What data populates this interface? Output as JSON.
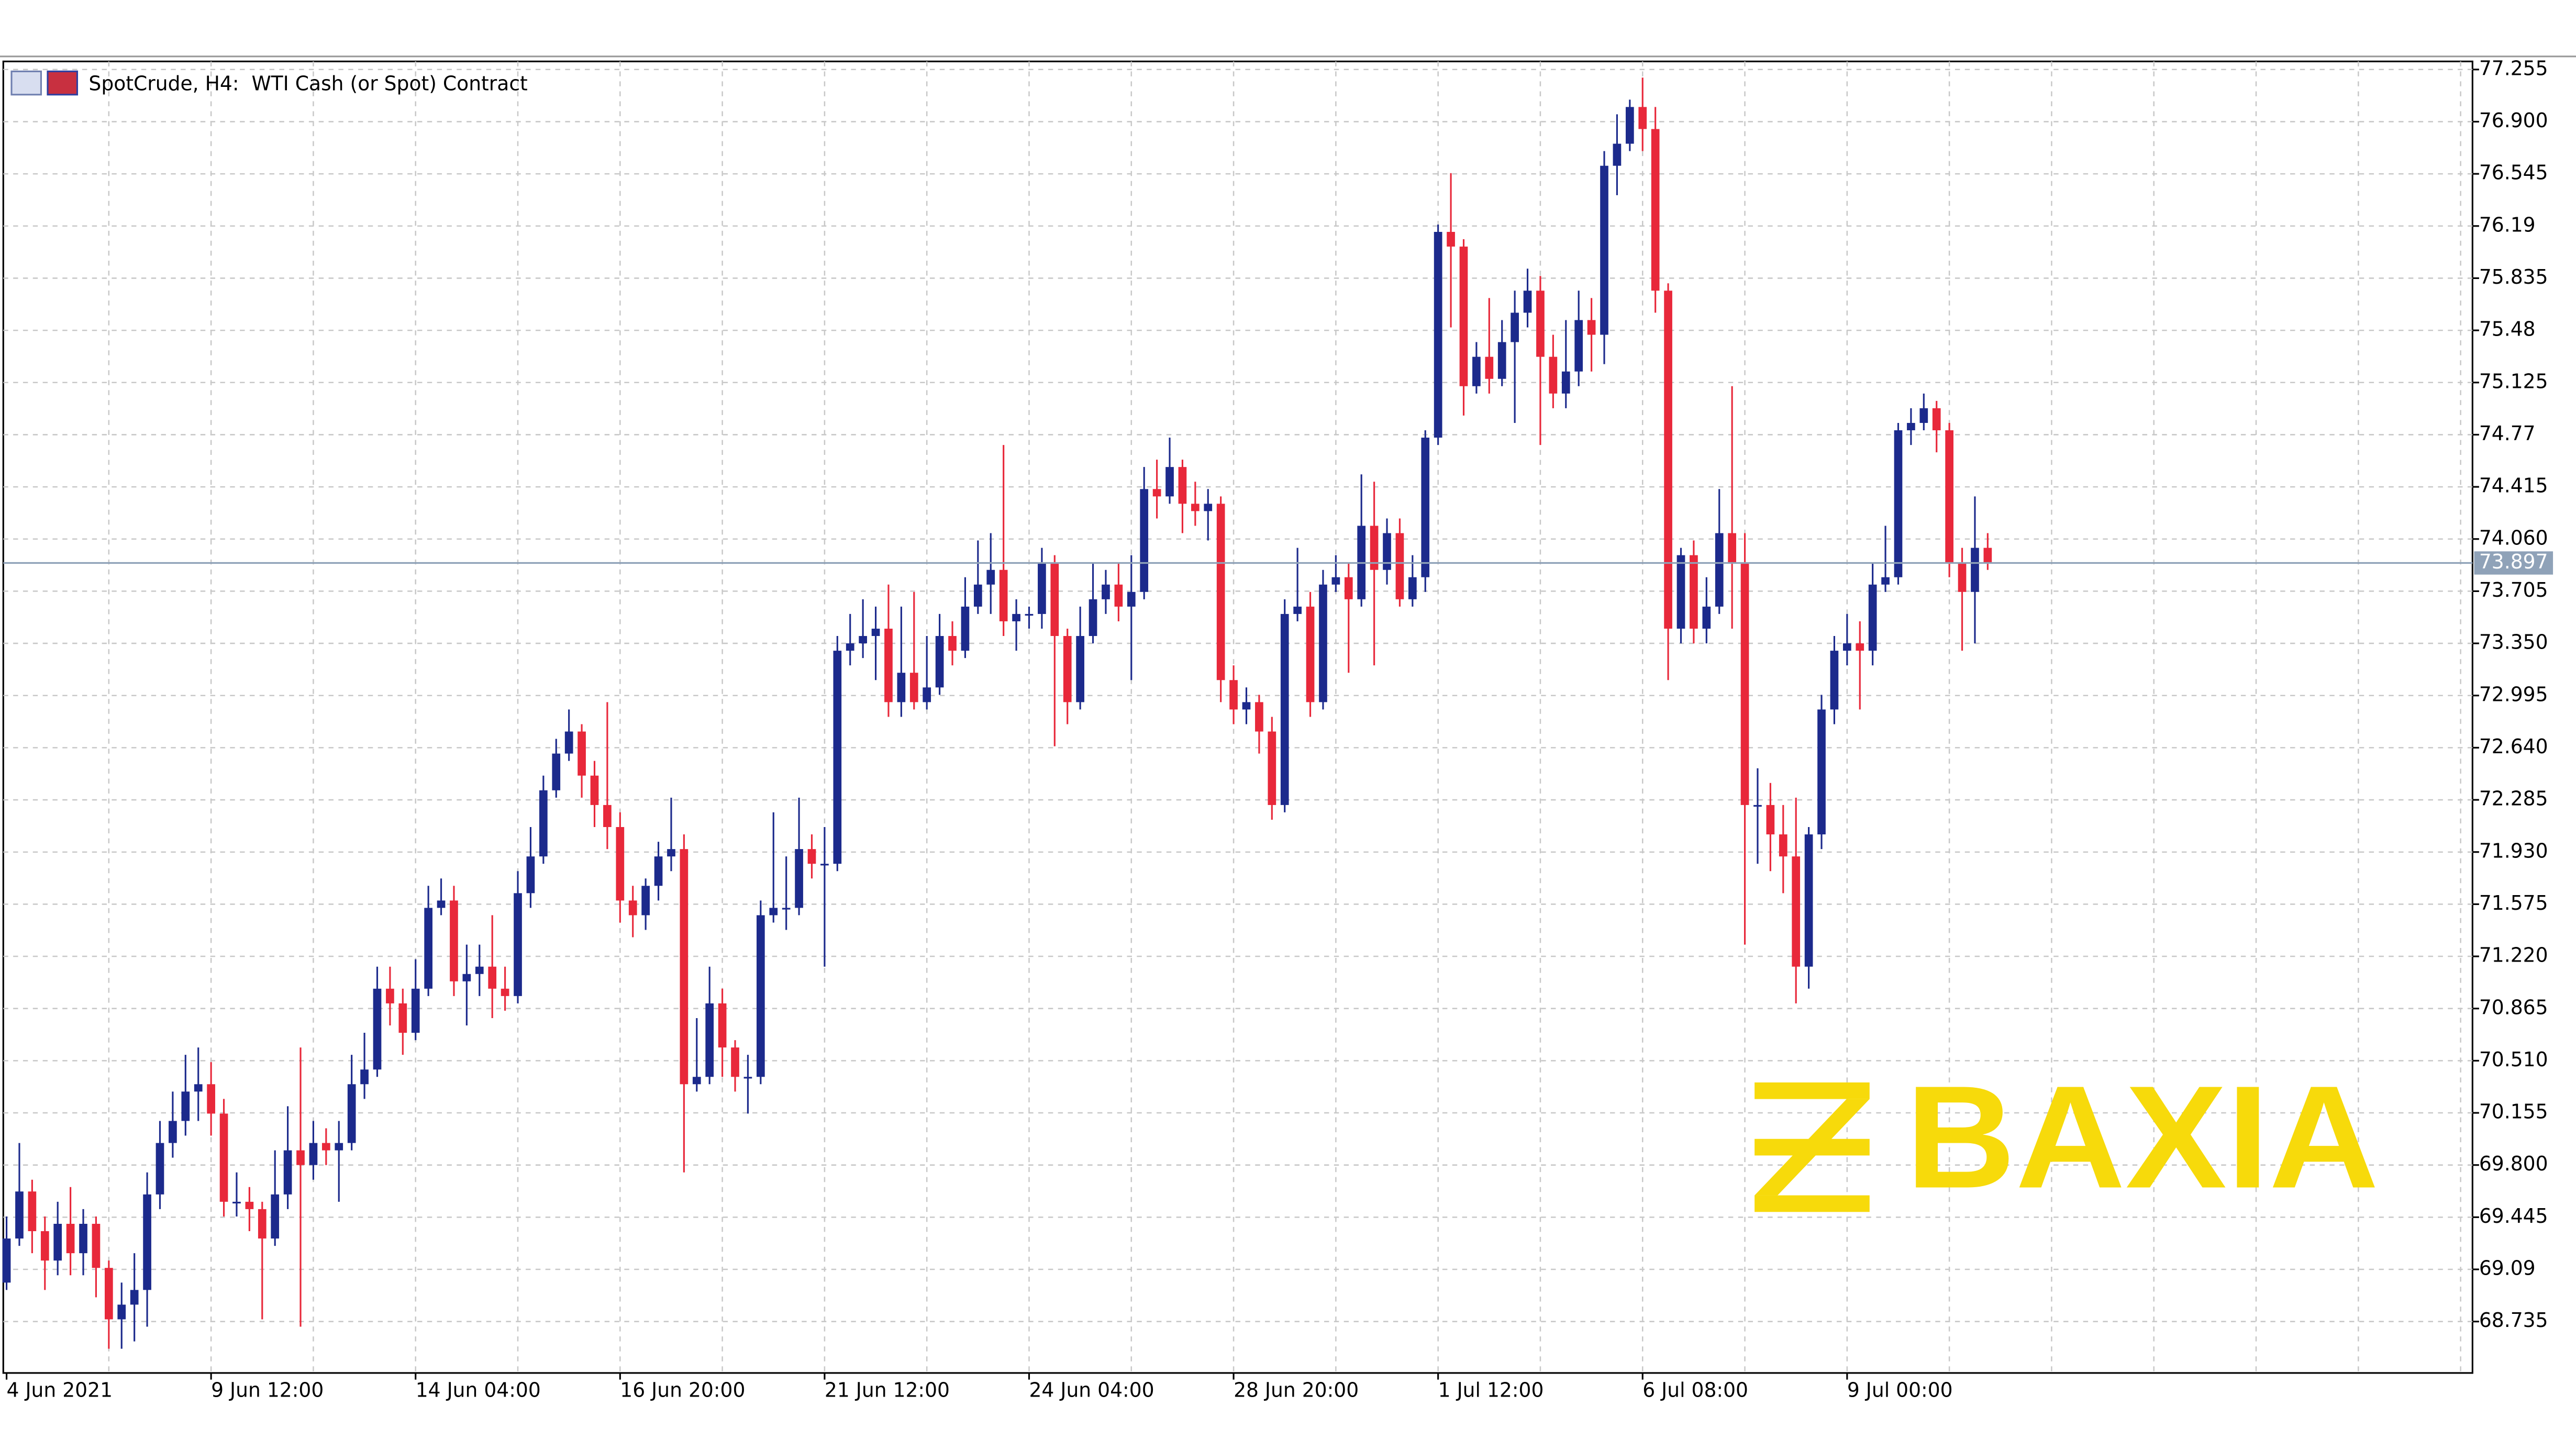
{
  "chart_data": {
    "type": "candlestick",
    "title": "SpotCrude, H4:  WTI Cash (or Spot) Contract",
    "categories": [
      "4 Jun 2021",
      null,
      null,
      null,
      null,
      null,
      null,
      null,
      null,
      null,
      null,
      null,
      null,
      null,
      null,
      null,
      "9 Jun 12:00",
      null,
      null,
      null,
      null,
      null,
      null,
      null,
      null,
      null,
      null,
      null,
      null,
      null,
      null,
      null,
      "14 Jun 04:00",
      null,
      null,
      null,
      null,
      null,
      null,
      null,
      null,
      null,
      null,
      null,
      null,
      null,
      null,
      null,
      "16 Jun 20:00",
      null,
      null,
      null,
      null,
      null,
      null,
      null,
      null,
      null,
      null,
      null,
      null,
      null,
      null,
      null,
      "21 Jun 12:00",
      null,
      null,
      null,
      null,
      null,
      null,
      null,
      null,
      null,
      null,
      null,
      null,
      null,
      null,
      null,
      "24 Jun 04:00",
      null,
      null,
      null,
      null,
      null,
      null,
      null,
      null,
      null,
      null,
      null,
      null,
      null,
      null,
      null,
      "28 Jun 20:00",
      null,
      null,
      null,
      null,
      null,
      null,
      null,
      null,
      null,
      null,
      null,
      null,
      null,
      null,
      null,
      "1 Jul 12:00",
      null,
      null,
      null,
      null,
      null,
      null,
      null,
      null,
      null,
      null,
      null,
      null,
      null,
      null,
      null,
      "6 Jul 08:00",
      null,
      null,
      null,
      null,
      null,
      null,
      null,
      null,
      null,
      null,
      null,
      null,
      null,
      null,
      null,
      "9 Jul 00:00",
      null,
      null,
      null,
      null,
      null,
      null,
      null,
      null,
      null,
      null,
      null
    ],
    "open": [
      69.0,
      69.3,
      69.62,
      69.35,
      69.15,
      69.4,
      69.2,
      69.4,
      69.1,
      68.75,
      68.85,
      68.95,
      69.6,
      69.95,
      70.1,
      70.3,
      70.35,
      70.15,
      69.55,
      69.55,
      69.5,
      69.3,
      69.6,
      69.9,
      69.8,
      69.95,
      69.9,
      69.95,
      70.35,
      70.45,
      71.0,
      70.9,
      70.7,
      71.0,
      71.55,
      71.6,
      71.05,
      71.1,
      71.15,
      71.0,
      70.95,
      71.65,
      71.9,
      72.35,
      72.6,
      72.75,
      72.45,
      72.25,
      72.1,
      71.6,
      71.5,
      71.7,
      71.9,
      71.95,
      70.35,
      70.4,
      70.9,
      70.6,
      70.4,
      70.4,
      71.5,
      71.55,
      71.55,
      71.95,
      71.85,
      71.85,
      73.3,
      73.35,
      73.4,
      73.45,
      72.95,
      73.15,
      72.95,
      73.05,
      73.4,
      73.3,
      73.6,
      73.75,
      73.85,
      73.5,
      73.55,
      73.55,
      73.9,
      73.4,
      72.95,
      73.4,
      73.65,
      73.75,
      73.6,
      73.7,
      74.4,
      74.35,
      74.55,
      74.3,
      74.25,
      74.3,
      73.1,
      72.9,
      72.95,
      72.75,
      72.25,
      73.55,
      73.6,
      72.95,
      73.75,
      73.8,
      73.65,
      74.15,
      73.85,
      74.1,
      73.65,
      73.8,
      74.75,
      76.15,
      76.05,
      75.1,
      75.3,
      75.15,
      75.4,
      75.6,
      75.75,
      75.3,
      75.05,
      75.2,
      75.55,
      75.45,
      76.6,
      76.75,
      77.0,
      76.85,
      75.75,
      73.45,
      73.95,
      73.45,
      73.6,
      74.1,
      73.9,
      72.25,
      72.25,
      72.05,
      71.9,
      71.15,
      72.05,
      72.9,
      73.3,
      73.35,
      73.3,
      73.75,
      73.8,
      74.8,
      74.85,
      74.95,
      74.8,
      73.9,
      73.7,
      74.0
    ],
    "high": [
      69.45,
      69.95,
      69.7,
      69.45,
      69.55,
      69.65,
      69.5,
      69.45,
      69.15,
      69.0,
      69.2,
      69.75,
      70.1,
      70.3,
      70.55,
      70.6,
      70.5,
      70.25,
      69.75,
      69.65,
      69.55,
      69.9,
      70.2,
      70.6,
      70.1,
      70.05,
      70.1,
      70.55,
      70.7,
      71.15,
      71.15,
      71.0,
      71.2,
      71.7,
      71.75,
      71.7,
      71.3,
      71.3,
      71.5,
      71.15,
      71.8,
      72.1,
      72.45,
      72.7,
      72.9,
      72.8,
      72.55,
      72.95,
      72.2,
      71.7,
      71.75,
      72.0,
      72.3,
      72.05,
      70.8,
      71.15,
      71.0,
      70.65,
      70.55,
      71.6,
      72.2,
      71.9,
      72.3,
      72.05,
      72.1,
      73.4,
      73.55,
      73.65,
      73.6,
      73.75,
      73.6,
      73.7,
      73.4,
      73.55,
      73.5,
      73.8,
      74.05,
      74.1,
      74.7,
      73.65,
      73.6,
      74.0,
      73.95,
      73.45,
      73.6,
      73.9,
      73.85,
      73.9,
      73.95,
      74.55,
      74.6,
      74.75,
      74.6,
      74.45,
      74.4,
      74.35,
      73.2,
      73.05,
      73.0,
      72.85,
      73.65,
      74.0,
      73.7,
      73.85,
      73.95,
      73.9,
      74.5,
      74.45,
      74.2,
      74.2,
      73.95,
      74.8,
      76.2,
      76.55,
      76.1,
      75.4,
      75.7,
      75.55,
      75.75,
      75.9,
      75.85,
      75.45,
      75.55,
      75.75,
      75.7,
      76.7,
      76.95,
      77.05,
      77.2,
      77.0,
      75.8,
      74.0,
      74.05,
      73.8,
      74.4,
      75.1,
      74.1,
      72.5,
      72.4,
      72.25,
      72.3,
      72.1,
      73.0,
      73.4,
      73.55,
      73.5,
      73.9,
      74.15,
      74.85,
      74.95,
      75.05,
      75.0,
      74.85,
      74.0,
      74.35,
      74.1
    ],
    "low": [
      68.95,
      69.25,
      69.2,
      68.95,
      69.05,
      69.05,
      69.05,
      68.9,
      68.55,
      68.55,
      68.6,
      68.7,
      69.5,
      69.85,
      70.0,
      70.1,
      70.0,
      69.45,
      69.45,
      69.35,
      68.75,
      69.25,
      69.5,
      68.7,
      69.7,
      69.8,
      69.55,
      69.9,
      70.25,
      70.4,
      70.75,
      70.55,
      70.65,
      70.95,
      71.5,
      70.95,
      70.75,
      70.95,
      70.8,
      70.85,
      70.9,
      71.55,
      71.85,
      72.3,
      72.55,
      72.3,
      72.1,
      71.95,
      71.45,
      71.35,
      71.4,
      71.6,
      71.8,
      69.75,
      70.3,
      70.35,
      70.4,
      70.3,
      70.15,
      70.35,
      71.45,
      71.4,
      71.5,
      71.75,
      71.15,
      71.8,
      73.2,
      73.25,
      73.1,
      72.85,
      72.85,
      72.9,
      72.9,
      73.0,
      73.2,
      73.25,
      73.55,
      73.55,
      73.4,
      73.3,
      73.45,
      73.45,
      72.65,
      72.8,
      72.9,
      73.35,
      73.55,
      73.5,
      73.1,
      73.65,
      74.2,
      74.3,
      74.1,
      74.15,
      74.05,
      72.95,
      72.8,
      72.8,
      72.6,
      72.15,
      72.2,
      73.5,
      72.85,
      72.9,
      73.7,
      73.15,
      73.6,
      73.2,
      73.75,
      73.6,
      73.6,
      73.7,
      74.7,
      75.5,
      74.9,
      75.05,
      75.05,
      75.1,
      74.85,
      75.5,
      74.7,
      74.95,
      74.95,
      75.1,
      75.2,
      75.25,
      76.4,
      76.7,
      76.7,
      75.6,
      73.1,
      73.35,
      73.35,
      73.35,
      73.55,
      73.45,
      71.3,
      71.85,
      71.8,
      71.65,
      70.9,
      71.0,
      71.95,
      72.8,
      73.2,
      72.9,
      73.2,
      73.7,
      73.75,
      74.7,
      74.8,
      74.65,
      73.8,
      73.3,
      73.35,
      73.85
    ],
    "close": [
      69.3,
      69.62,
      69.35,
      69.15,
      69.4,
      69.2,
      69.4,
      69.1,
      68.75,
      68.85,
      68.95,
      69.6,
      69.95,
      70.1,
      70.3,
      70.35,
      70.15,
      69.55,
      69.55,
      69.5,
      69.3,
      69.6,
      69.9,
      69.8,
      69.95,
      69.9,
      69.95,
      70.35,
      70.45,
      71.0,
      70.9,
      70.7,
      71.0,
      71.55,
      71.6,
      71.05,
      71.1,
      71.15,
      71.0,
      70.95,
      71.65,
      71.9,
      72.35,
      72.6,
      72.75,
      72.45,
      72.25,
      72.1,
      71.6,
      71.5,
      71.7,
      71.9,
      71.95,
      70.35,
      70.4,
      70.9,
      70.6,
      70.4,
      70.4,
      71.5,
      71.55,
      71.55,
      71.95,
      71.85,
      71.85,
      73.3,
      73.35,
      73.4,
      73.45,
      72.95,
      73.15,
      72.95,
      73.05,
      73.4,
      73.3,
      73.6,
      73.75,
      73.85,
      73.5,
      73.55,
      73.55,
      73.9,
      73.4,
      72.95,
      73.4,
      73.65,
      73.75,
      73.6,
      73.7,
      74.4,
      74.35,
      74.55,
      74.3,
      74.25,
      74.3,
      73.1,
      72.9,
      72.95,
      72.75,
      72.25,
      73.55,
      73.6,
      72.95,
      73.75,
      73.8,
      73.65,
      74.15,
      73.85,
      74.1,
      73.65,
      73.8,
      74.75,
      76.15,
      76.05,
      75.1,
      75.3,
      75.15,
      75.4,
      75.6,
      75.75,
      75.3,
      75.05,
      75.2,
      75.55,
      75.45,
      76.6,
      76.75,
      77.0,
      76.85,
      75.75,
      73.45,
      73.95,
      73.45,
      73.6,
      74.1,
      73.9,
      72.25,
      72.25,
      72.05,
      71.9,
      71.15,
      72.05,
      72.9,
      73.3,
      73.35,
      73.3,
      73.75,
      73.8,
      74.8,
      74.85,
      74.95,
      74.8,
      73.9,
      73.7,
      74.0,
      73.9
    ],
    "up_color": "#1c2a8c",
    "down_color": "#e8283a",
    "ylim": [
      68.385,
      77.31
    ],
    "yticks": [
      77.255,
      {
        "value": 76.9,
        "label": "76.900"
      },
      76.545,
      76.19,
      75.835,
      75.48,
      75.125,
      74.77,
      74.415,
      {
        "value": 74.06,
        "label": "74.060"
      },
      73.705,
      {
        "value": 73.35,
        "label": "73.350"
      },
      72.995,
      {
        "value": 72.64,
        "label": "72.640"
      },
      72.285,
      {
        "value": 71.93,
        "label": "71.930"
      },
      71.575,
      {
        "value": 71.22,
        "label": "71.220"
      },
      70.865,
      {
        "value": 70.51,
        "label": "70.510"
      },
      70.155,
      {
        "value": 69.8,
        "label": "69.800"
      },
      69.445,
      69.09,
      68.735
    ],
    "grid": true,
    "last_price": 73.897,
    "watermark": "BAXIA"
  }
}
